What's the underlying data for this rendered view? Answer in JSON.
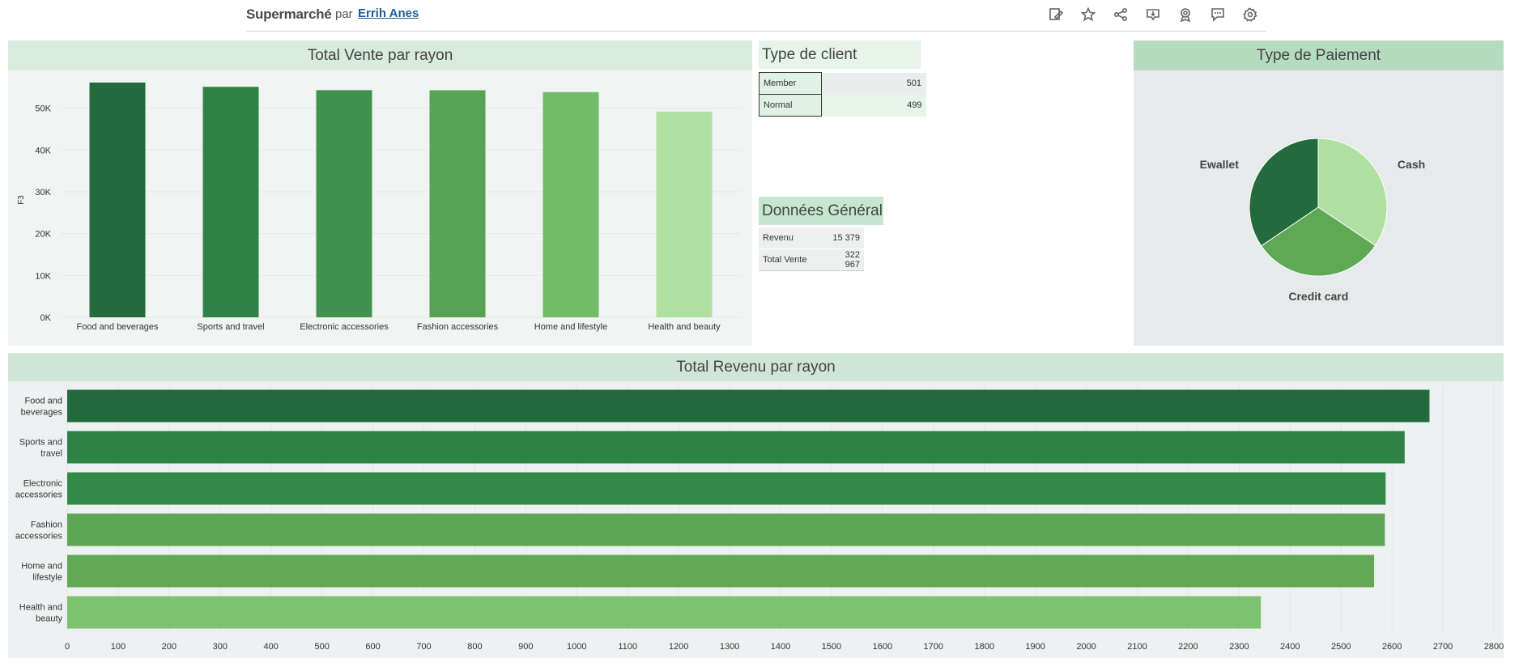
{
  "header": {
    "title": "Supermarché",
    "by": "par",
    "author": "Errih Anes",
    "icons": [
      "edit-icon",
      "star-icon",
      "share-icon",
      "download-icon",
      "badge-icon",
      "comment-icon",
      "gear-icon"
    ]
  },
  "chart_data": [
    {
      "type": "bar",
      "title": "Total Vente par rayon",
      "ylabel": "F3",
      "categories": [
        "Food and beverages",
        "Sports and travel",
        "Electronic accessories",
        "Fashion accessories",
        "Home and lifestyle",
        "Health and beauty"
      ],
      "values": [
        56145,
        55123,
        54338,
        54306,
        53862,
        49194
      ],
      "yticks": [
        "0K",
        "10K",
        "20K",
        "30K",
        "40K",
        "50K"
      ],
      "ylim": [
        0,
        57500
      ],
      "colors": [
        "#236a3c",
        "#2e8246",
        "#42924f",
        "#58a255",
        "#74bb68",
        "#b0e0a1"
      ]
    },
    {
      "type": "pie",
      "title": "Type de Paiement",
      "labels": [
        "Cash",
        "Credit card",
        "Ewallet"
      ],
      "values": [
        344,
        311,
        345
      ],
      "colors": [
        "#b0e0a1",
        "#5fa855",
        "#236a3c"
      ]
    },
    {
      "type": "bar",
      "orientation": "horizontal",
      "title": "Total Revenu par rayon",
      "categories": [
        [
          "Food and",
          "beverages"
        ],
        [
          "Sports and",
          "travel"
        ],
        [
          "Electronic",
          "accessories"
        ],
        [
          "Fashion",
          "accessories"
        ],
        [
          "Home and",
          "lifestyle"
        ],
        [
          "Health and",
          "beauty"
        ]
      ],
      "values": [
        2673.6,
        2624.9,
        2587.5,
        2586.0,
        2564.9,
        2342.6
      ],
      "xticks": [
        "0",
        "100",
        "200",
        "300",
        "400",
        "500",
        "600",
        "700",
        "800",
        "900",
        "1000",
        "1100",
        "1200",
        "1300",
        "1400",
        "1500",
        "1600",
        "1700",
        "1800",
        "1900",
        "2000",
        "2100",
        "2200",
        "2300",
        "2400",
        "2500",
        "2600",
        "2700",
        "2800"
      ],
      "xlim": [
        0,
        2800
      ],
      "colors": [
        "#236a3c",
        "#2e8246",
        "#338a48",
        "#5ea555",
        "#62a856",
        "#7dc26f"
      ]
    }
  ],
  "client": {
    "title": "Type de client",
    "rows": [
      {
        "label": "Member",
        "value": "501"
      },
      {
        "label": "Normal",
        "value": "499"
      }
    ]
  },
  "general": {
    "title": "Données Général",
    "rows": [
      {
        "label": "Revenu",
        "value": "15 379"
      },
      {
        "label": "Total Vente",
        "value": "322 967"
      }
    ]
  }
}
